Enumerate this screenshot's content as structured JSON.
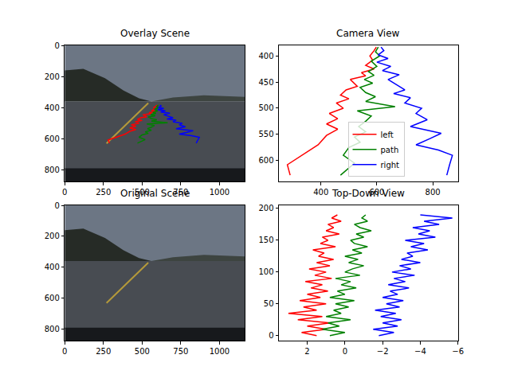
{
  "chart_data": [
    {
      "title": "Overlay Scene",
      "type": "image_overlay",
      "xlim": [
        0,
        1164
      ],
      "ylim": [
        874,
        0
      ],
      "xticks": [
        0,
        250,
        500,
        750,
        1000
      ],
      "yticks": [
        0,
        200,
        400,
        600,
        800
      ],
      "series": [
        {
          "name": "left",
          "color": "#ff0000",
          "x": [
            598,
            590,
            575,
            585,
            560,
            590,
            545,
            560,
            505,
            520,
            530,
            490,
            470,
            500,
            455,
            480,
            430,
            460,
            420,
            460,
            420,
            390,
            330,
            280,
            290
          ],
          "values": [
            383,
            390,
            400,
            408,
            418,
            425,
            432,
            438,
            445,
            452,
            458,
            465,
            475,
            482,
            490,
            500,
            510,
            520,
            530,
            540,
            552,
            570,
            590,
            608,
            628
          ]
        },
        {
          "name": "path",
          "color": "#008000",
          "x": [
            605,
            595,
            610,
            580,
            600,
            570,
            590,
            555,
            585,
            540,
            560,
            595,
            560,
            665,
            530,
            580,
            560,
            535,
            560,
            520,
            540,
            500,
            480,
            520,
            470
          ],
          "values": [
            383,
            392,
            400,
            410,
            420,
            430,
            437,
            445,
            452,
            460,
            470,
            478,
            487,
            497,
            505,
            515,
            525,
            535,
            545,
            555,
            565,
            575,
            590,
            605,
            628
          ]
        },
        {
          "name": "right",
          "color": "#0000ff",
          "x": [
            615,
            625,
            605,
            640,
            600,
            650,
            620,
            680,
            640,
            670,
            700,
            660,
            720,
            700,
            760,
            740,
            780,
            720,
            830,
            790,
            740,
            820,
            870,
            860,
            850
          ],
          "values": [
            383,
            390,
            398,
            405,
            412,
            420,
            428,
            436,
            445,
            455,
            465,
            472,
            480,
            490,
            500,
            510,
            522,
            535,
            548,
            558,
            570,
            580,
            590,
            608,
            628
          ]
        }
      ]
    },
    {
      "title": "Camera View",
      "type": "line",
      "legend": "lower center",
      "xlim": [
        250,
        890
      ],
      "ylim": [
        640,
        380
      ],
      "xticks": [
        400,
        600,
        800
      ],
      "yticks": [
        400,
        450,
        500,
        550,
        600
      ],
      "series": [
        {
          "name": "left",
          "color": "#ff0000",
          "x": [
            598,
            590,
            575,
            585,
            560,
            590,
            545,
            560,
            505,
            520,
            530,
            490,
            470,
            500,
            455,
            480,
            430,
            460,
            420,
            460,
            420,
            390,
            330,
            280,
            290
          ],
          "values": [
            383,
            390,
            400,
            408,
            418,
            425,
            432,
            438,
            445,
            452,
            458,
            465,
            475,
            482,
            490,
            500,
            510,
            520,
            530,
            540,
            552,
            570,
            590,
            608,
            628
          ]
        },
        {
          "name": "path",
          "color": "#008000",
          "x": [
            605,
            595,
            610,
            580,
            600,
            570,
            590,
            555,
            585,
            540,
            560,
            595,
            560,
            665,
            530,
            580,
            560,
            535,
            560,
            520,
            540,
            500,
            480,
            520,
            470
          ],
          "values": [
            383,
            392,
            400,
            410,
            420,
            430,
            437,
            445,
            452,
            460,
            470,
            478,
            487,
            497,
            505,
            515,
            525,
            535,
            545,
            555,
            565,
            575,
            590,
            605,
            628
          ]
        },
        {
          "name": "right",
          "color": "#0000ff",
          "x": [
            615,
            625,
            605,
            640,
            600,
            650,
            620,
            680,
            640,
            670,
            700,
            660,
            720,
            700,
            760,
            740,
            780,
            720,
            830,
            790,
            740,
            820,
            870,
            860,
            850
          ],
          "values": [
            383,
            390,
            398,
            405,
            412,
            420,
            428,
            436,
            445,
            455,
            465,
            472,
            480,
            490,
            500,
            510,
            522,
            535,
            548,
            558,
            570,
            580,
            590,
            608,
            628
          ]
        }
      ]
    },
    {
      "title": "Original Scene",
      "type": "image",
      "xlim": [
        0,
        1164
      ],
      "ylim": [
        874,
        0
      ],
      "xticks": [
        0,
        250,
        500,
        750,
        1000
      ],
      "yticks": [
        0,
        200,
        400,
        600,
        800
      ],
      "series": []
    },
    {
      "title": "Top-Down View",
      "type": "line",
      "xlim": [
        3.5,
        -6
      ],
      "ylim": [
        -8,
        205
      ],
      "xticks": [
        2,
        0,
        {
          "value": -2,
          "label": "−2"
        },
        {
          "value": -4,
          "label": "−4"
        },
        {
          "value": -6,
          "label": "−6"
        }
      ],
      "yticks": [
        0,
        50,
        100,
        150,
        200
      ],
      "series": [
        {
          "name": "left",
          "color": "#ff0000",
          "x": [
            1.5,
            2.3,
            1.0,
            2.0,
            0.8,
            2.5,
            1.2,
            3.0,
            1.5,
            2.2,
            1.0,
            2.4,
            1.3,
            2.0,
            0.9,
            1.8,
            1.2,
            2.1,
            0.7,
            1.6,
            1.0,
            1.9,
            0.8,
            1.5,
            0.6,
            1.4,
            1.1,
            1.7,
            0.5,
            1.3,
            0.9,
            1.2,
            0.3,
            1.0,
            0.6,
            0.9,
            0.2,
            0.7,
            0.4
          ],
          "values": [
            0,
            5,
            10,
            15,
            20,
            25,
            30,
            35,
            40,
            45,
            50,
            55,
            60,
            65,
            70,
            75,
            80,
            85,
            90,
            95,
            100,
            105,
            110,
            115,
            120,
            125,
            130,
            135,
            140,
            145,
            150,
            155,
            160,
            165,
            170,
            175,
            180,
            185,
            190
          ]
        },
        {
          "name": "path",
          "color": "#008000",
          "x": [
            0.8,
            0.0,
            1.2,
            0.3,
            0.9,
            -0.3,
            1.0,
            0.2,
            0.6,
            -0.2,
            0.5,
            -0.5,
            0.8,
            0.0,
            0.4,
            -0.6,
            0.2,
            -0.3,
            0.5,
            -0.8,
            0.0,
            -0.4,
            -1.0,
            -0.2,
            -0.7,
            0.0,
            -0.9,
            -0.4,
            -1.2,
            -0.5,
            -0.3,
            -1.0,
            -0.6,
            -1.4,
            -0.8,
            -0.5,
            -1.2,
            -0.9,
            -1.1
          ],
          "values": [
            0,
            5,
            10,
            15,
            20,
            25,
            30,
            35,
            40,
            45,
            50,
            55,
            60,
            65,
            70,
            75,
            80,
            85,
            90,
            95,
            100,
            105,
            110,
            115,
            120,
            125,
            130,
            135,
            140,
            145,
            150,
            155,
            160,
            165,
            170,
            175,
            180,
            185,
            190
          ]
        },
        {
          "name": "right",
          "color": "#0000ff",
          "x": [
            -1.8,
            -2.6,
            -1.5,
            -2.8,
            -2.0,
            -3.0,
            -1.9,
            -2.7,
            -1.6,
            -2.9,
            -2.2,
            -3.1,
            -2.0,
            -2.8,
            -2.4,
            -3.4,
            -2.3,
            -3.2,
            -2.6,
            -3.7,
            -2.5,
            -3.5,
            -2.9,
            -4.0,
            -3.0,
            -3.6,
            -3.3,
            -4.4,
            -3.5,
            -4.2,
            -3.2,
            -4.8,
            -3.9,
            -4.5,
            -3.6,
            -5.0,
            -4.2,
            -5.7,
            -4.0
          ],
          "values": [
            0,
            5,
            10,
            15,
            20,
            25,
            30,
            35,
            40,
            45,
            50,
            55,
            60,
            65,
            70,
            75,
            80,
            85,
            90,
            95,
            100,
            105,
            110,
            115,
            120,
            125,
            130,
            135,
            140,
            145,
            150,
            155,
            160,
            165,
            170,
            175,
            180,
            185,
            190
          ]
        }
      ]
    }
  ]
}
